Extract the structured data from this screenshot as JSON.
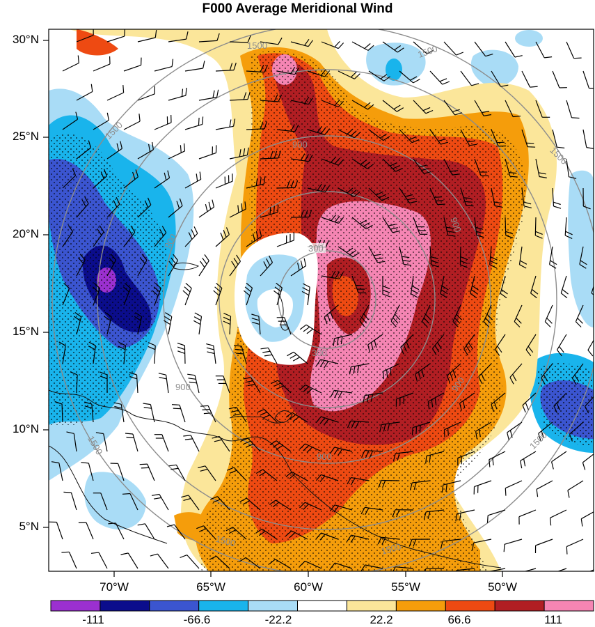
{
  "title": "F000 Average Meridional Wind",
  "lat_labels": [
    "30°N",
    "25°N",
    "20°N",
    "15°N",
    "10°N",
    "5°N"
  ],
  "lon_labels": [
    "70°W",
    "65°W",
    "60°W",
    "55°W",
    "50°W"
  ],
  "colorbar": {
    "colors": [
      "#9b30d0",
      "#0b0d8c",
      "#3b55d0",
      "#19b4ec",
      "#a9dcf6",
      "#ffffff",
      "#fbe69a",
      "#f59d0b",
      "#ee4a12",
      "#b11e23",
      "#f585b3"
    ],
    "labels": [
      "-111",
      "-66.6",
      "-22.2",
      "22.2",
      "66.6",
      "111"
    ]
  },
  "range_rings": {
    "labels": [
      "300",
      "900",
      "1500"
    ]
  }
}
